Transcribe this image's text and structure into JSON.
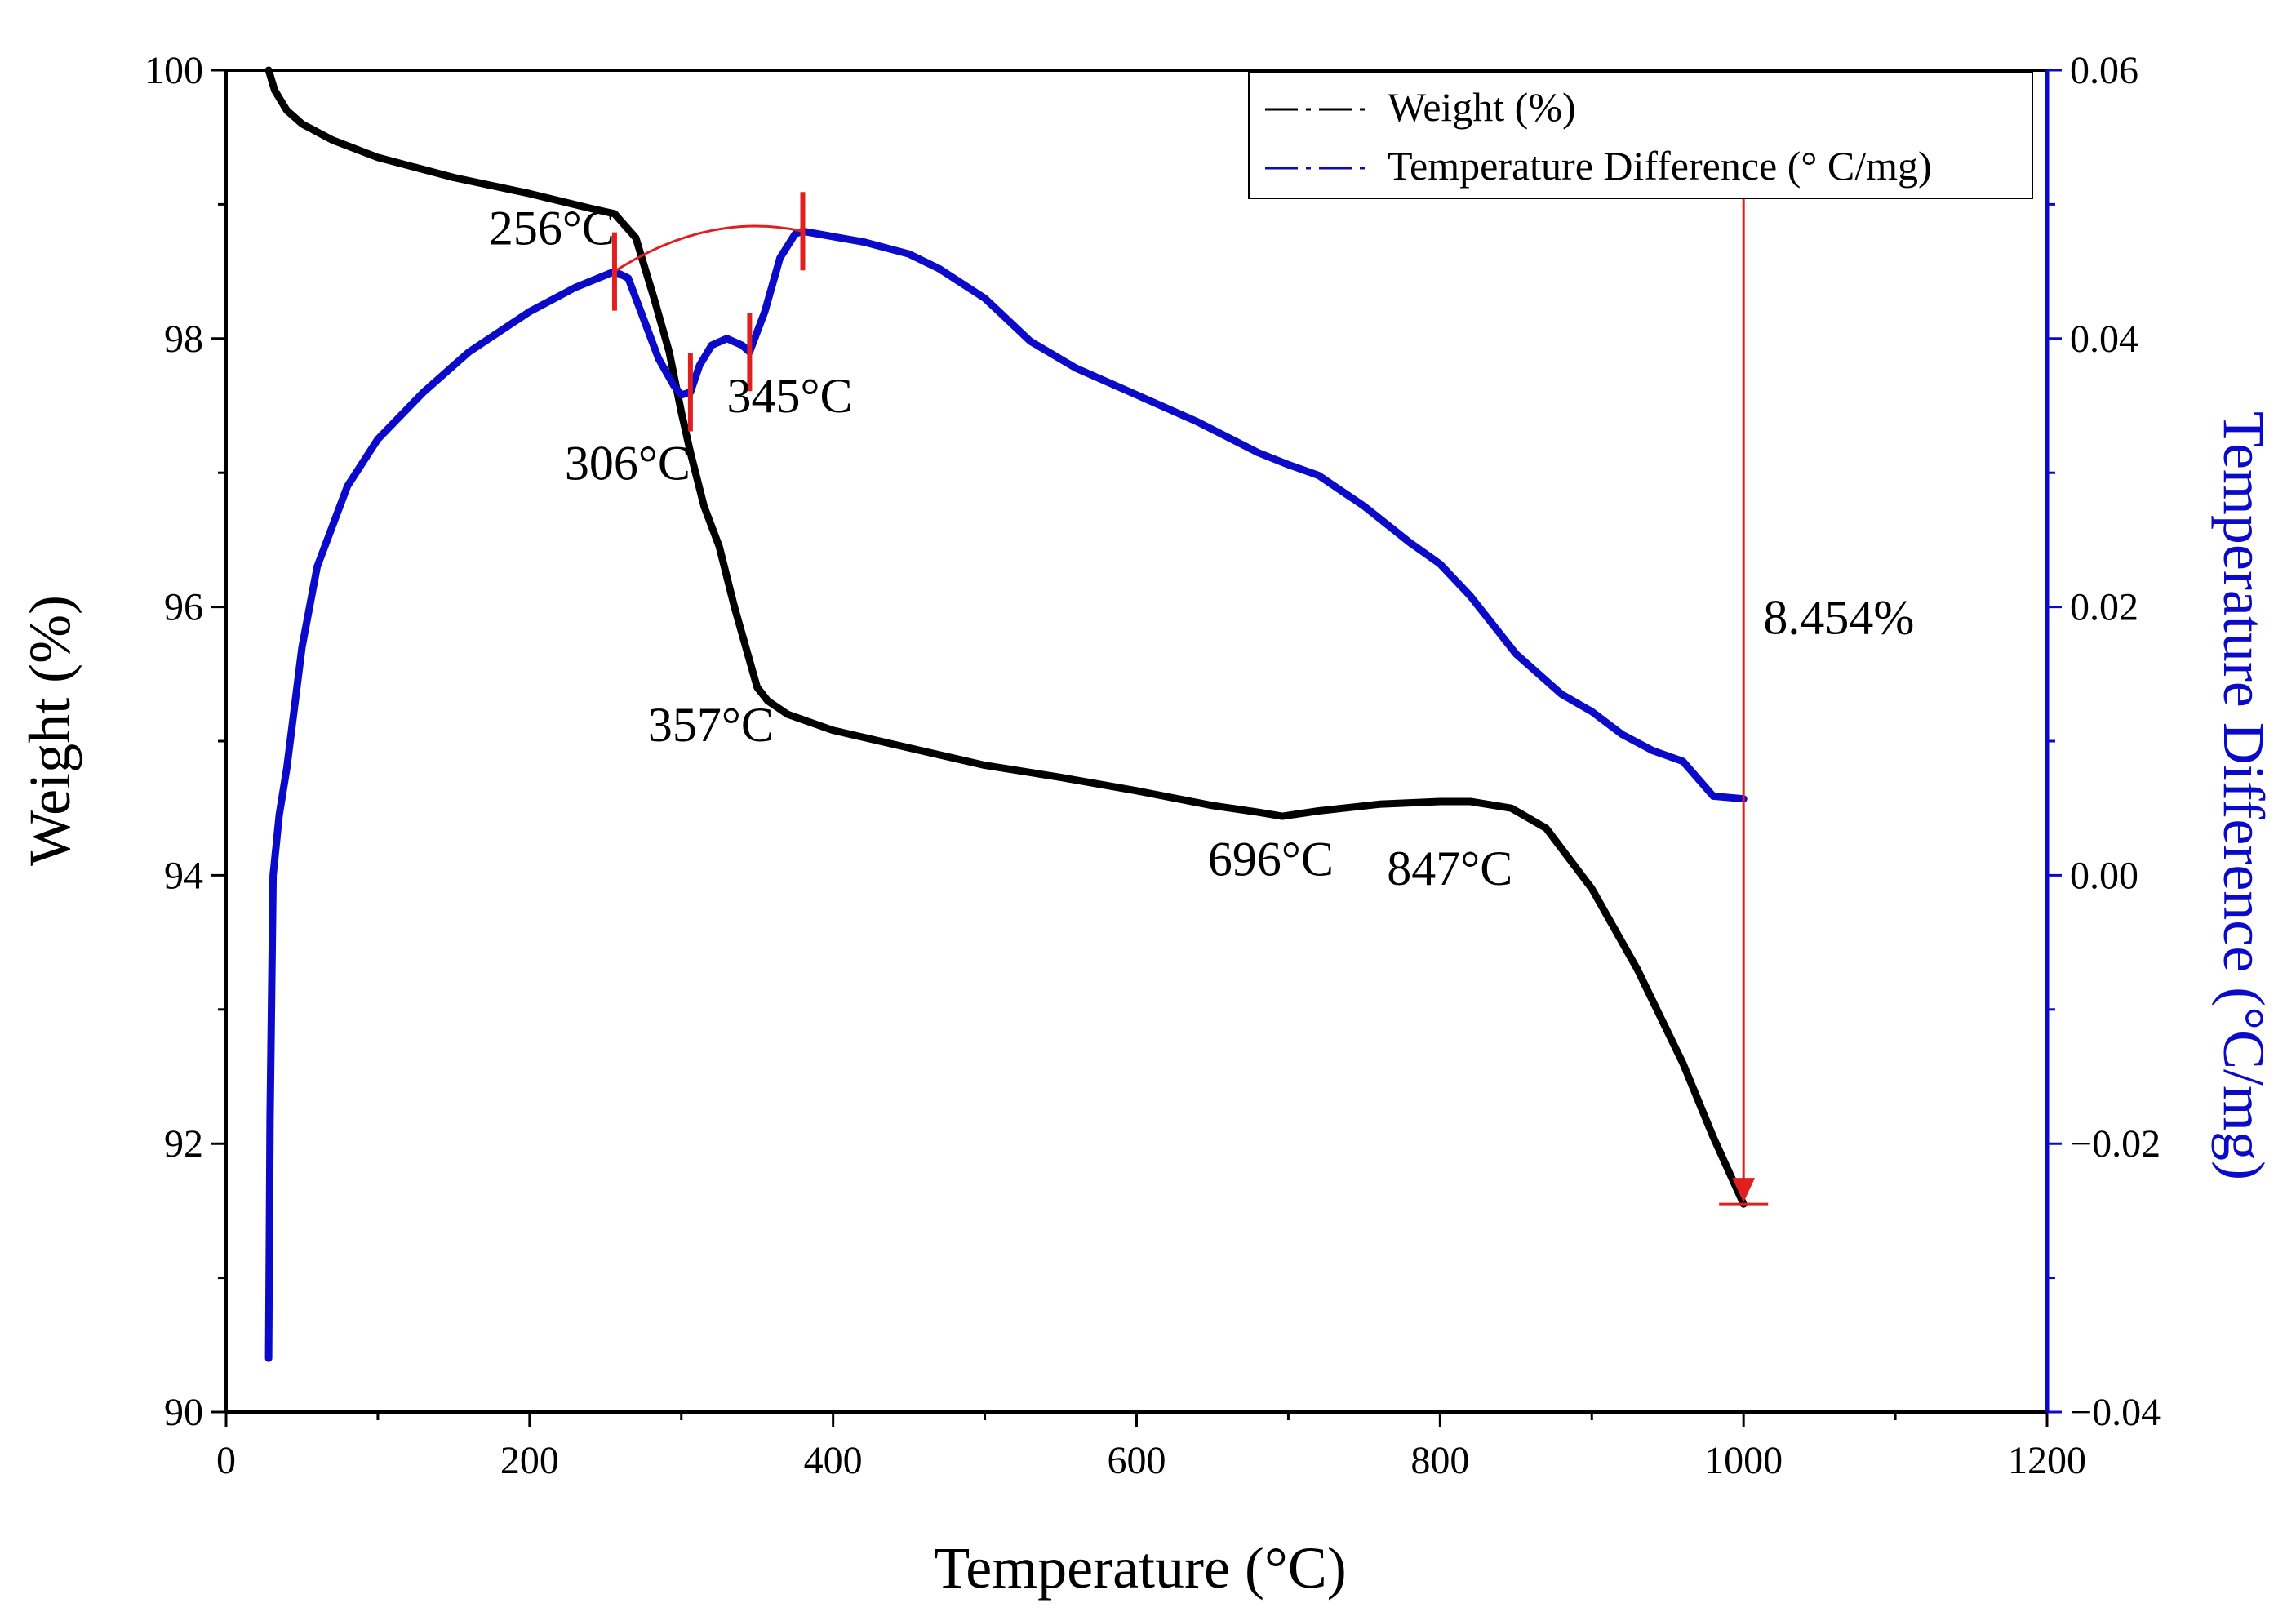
{
  "chart_data": {
    "type": "line",
    "title": "",
    "xlabel": "Temperature (°C)",
    "ylabel_left": "Weight (%)",
    "ylabel_right": "Temperature Difference (°C/mg)",
    "xlim": [
      0,
      1200
    ],
    "ylim_left": [
      90,
      100
    ],
    "ylim_right": [
      -0.04,
      0.06
    ],
    "x_ticks": [
      0,
      200,
      400,
      600,
      800,
      1000,
      1200
    ],
    "y_left_ticks": [
      90,
      92,
      94,
      96,
      98,
      100
    ],
    "y_right_ticks": [
      -0.04,
      -0.02,
      0.0,
      0.02,
      0.04,
      0.06
    ],
    "y_right_tick_labels": [
      "−0.04",
      "−0.02",
      "0.00",
      "0.02",
      "0.04",
      "0.06"
    ],
    "legend_position": "top-right",
    "legend": [
      {
        "label": "Weight (%)",
        "color": "#000000"
      },
      {
        "label": "Temperature Difference (° C/mg)",
        "color": "#0a0ac8"
      }
    ],
    "series": [
      {
        "name": "Weight (%)",
        "axis": "left",
        "color": "#000000",
        "x": [
          28,
          32,
          40,
          50,
          70,
          100,
          150,
          200,
          240,
          256,
          270,
          282,
          292,
          300,
          306,
          315,
          325,
          335,
          345,
          350,
          357,
          370,
          400,
          450,
          500,
          550,
          600,
          650,
          680,
          696,
          720,
          760,
          800,
          820,
          847,
          870,
          900,
          930,
          960,
          980,
          1000
        ],
        "y": [
          100.0,
          99.85,
          99.7,
          99.6,
          99.48,
          99.35,
          99.2,
          99.08,
          98.97,
          98.93,
          98.75,
          98.3,
          97.9,
          97.45,
          97.15,
          96.75,
          96.45,
          96.0,
          95.6,
          95.4,
          95.3,
          95.2,
          95.08,
          94.95,
          94.82,
          94.73,
          94.63,
          94.52,
          94.47,
          94.44,
          94.48,
          94.53,
          94.55,
          94.55,
          94.5,
          94.35,
          93.9,
          93.3,
          92.6,
          92.05,
          91.55
        ]
      },
      {
        "name": "Temperature Difference (° C/mg)",
        "axis": "right",
        "color": "#0a0ac8",
        "x": [
          28,
          29,
          31,
          35,
          40,
          50,
          60,
          80,
          100,
          130,
          160,
          200,
          230,
          256,
          265,
          275,
          285,
          295,
          300,
          306,
          312,
          320,
          330,
          340,
          345,
          355,
          365,
          375,
          380,
          400,
          420,
          450,
          470,
          500,
          530,
          560,
          600,
          640,
          680,
          700,
          720,
          750,
          780,
          800,
          820,
          850,
          880,
          900,
          920,
          940,
          960,
          980,
          1000
        ],
        "y": [
          -0.036,
          -0.018,
          0.0,
          0.0045,
          0.008,
          0.017,
          0.023,
          0.029,
          0.0325,
          0.036,
          0.039,
          0.042,
          0.0438,
          0.045,
          0.0445,
          0.0415,
          0.0385,
          0.0365,
          0.0358,
          0.036,
          0.038,
          0.0395,
          0.04,
          0.0395,
          0.039,
          0.042,
          0.046,
          0.0478,
          0.048,
          0.0476,
          0.0472,
          0.0463,
          0.0452,
          0.043,
          0.0398,
          0.0378,
          0.0358,
          0.0338,
          0.0315,
          0.0306,
          0.0298,
          0.0275,
          0.0248,
          0.0232,
          0.0208,
          0.0165,
          0.0135,
          0.0122,
          0.0105,
          0.0093,
          0.0085,
          0.0059,
          0.0057
        ]
      }
    ],
    "annotations": [
      {
        "label": "256°C",
        "x": 256,
        "y": 98.7,
        "axis": "left",
        "anchor": "end"
      },
      {
        "label": "306°C",
        "x": 306,
        "y": 96.95,
        "axis": "left",
        "anchor": "end"
      },
      {
        "label": "345°C",
        "x": 330,
        "y": 97.45,
        "axis": "left",
        "anchor": "start"
      },
      {
        "label": "357°C",
        "x": 278,
        "y": 95.0,
        "axis": "left",
        "anchor": "start"
      },
      {
        "label": "696°C",
        "x": 647,
        "y": 94.0,
        "axis": "left",
        "anchor": "start"
      },
      {
        "label": "847°C",
        "x": 765,
        "y": 93.93,
        "axis": "left",
        "anchor": "start"
      },
      {
        "label": "8.454%",
        "x": 1013,
        "y": 95.8,
        "axis": "left",
        "anchor": "start"
      }
    ],
    "peak_markers_x": [
      256,
      306,
      345,
      380
    ],
    "weight_loss": {
      "x": 1000,
      "y_from": 100.0,
      "y_to": 91.55,
      "value": "8.454%"
    },
    "colors": {
      "weight": "#000000",
      "temp_diff": "#0a0ac8",
      "marker": "#e02020",
      "right_axis": "#0a0ac8"
    }
  }
}
